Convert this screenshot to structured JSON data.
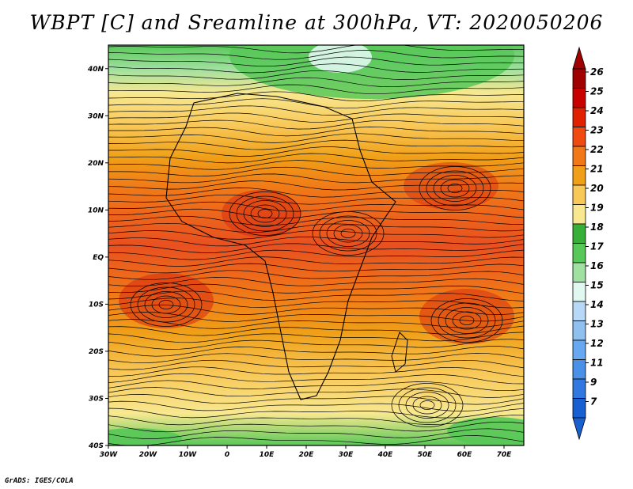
{
  "title": "WBPT [C] and Sreamline at 300hPa, VT: 2020050206",
  "credit": "GrADS: IGES/COLA",
  "map": {
    "lon_range": [
      -30,
      75
    ],
    "lat_range": [
      -40,
      45
    ],
    "lon_ticks": [
      "30W",
      "20W",
      "10W",
      "0",
      "10E",
      "20E",
      "30E",
      "40E",
      "50E",
      "60E",
      "70E"
    ],
    "lat_ticks": [
      "40N",
      "30N",
      "20N",
      "10N",
      "EQ",
      "10S",
      "20S",
      "30S",
      "40S"
    ],
    "field": "WBPT",
    "field_unit": "C",
    "overlay": "Streamline",
    "level": "300hPa",
    "valid_time": "2020050206"
  },
  "colorbar": {
    "labels": [
      "26",
      "25",
      "24",
      "23",
      "22",
      "21",
      "20",
      "19",
      "18",
      "17",
      "16",
      "15",
      "14",
      "13",
      "12",
      "11",
      "9",
      "7"
    ],
    "colors": [
      "#a00000",
      "#c80000",
      "#e02000",
      "#f04a10",
      "#f07818",
      "#f0a018",
      "#f8c858",
      "#f8e890",
      "#38b038",
      "#58c858",
      "#a0e0a0",
      "#e0f8f0",
      "#b8d8f8",
      "#90c0f0",
      "#68a8f0",
      "#4890e8",
      "#3078e0",
      "#1860d0"
    ]
  }
}
